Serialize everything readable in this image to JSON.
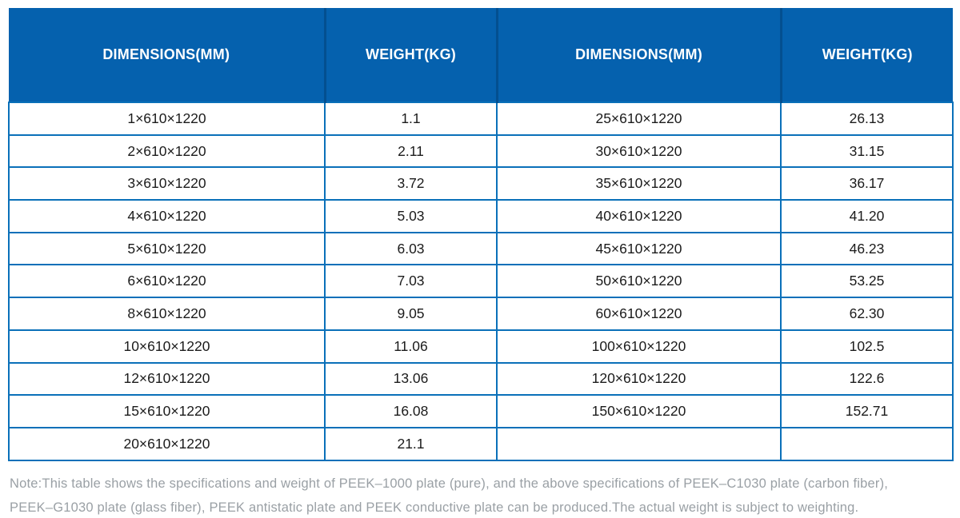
{
  "colors": {
    "header_bg": "#0561ae",
    "header_separator": "#034f90",
    "grid_border": "#0a70b9",
    "body_text": "#1b1b1b",
    "note_text": "#9aa0a5"
  },
  "table": {
    "headers": [
      "DIMENSIONS(MM)",
      "WEIGHT(KG)",
      "DIMENSIONS(MM)",
      "WEIGHT(KG)"
    ],
    "rows": [
      [
        "1×610×1220",
        "1.1",
        "25×610×1220",
        "26.13"
      ],
      [
        "2×610×1220",
        "2.11",
        "30×610×1220",
        "31.15"
      ],
      [
        "3×610×1220",
        "3.72",
        "35×610×1220",
        "36.17"
      ],
      [
        "4×610×1220",
        "5.03",
        "40×610×1220",
        "41.20"
      ],
      [
        "5×610×1220",
        "6.03",
        "45×610×1220",
        "46.23"
      ],
      [
        "6×610×1220",
        "7.03",
        "50×610×1220",
        "53.25"
      ],
      [
        "8×610×1220",
        "9.05",
        "60×610×1220",
        "62.30"
      ],
      [
        "10×610×1220",
        "11.06",
        "100×610×1220",
        "102.5"
      ],
      [
        "12×610×1220",
        "13.06",
        "120×610×1220",
        "122.6"
      ],
      [
        "15×610×1220",
        "16.08",
        "150×610×1220",
        "152.71"
      ],
      [
        "20×610×1220",
        "21.1",
        "",
        ""
      ]
    ]
  },
  "note": {
    "lines": [
      "Note:This table shows the specifications and weight of PEEK–1000 plate (pure), and the above specifications of PEEK–C1030 plate (carbon fiber),",
      "PEEK–G1030 plate (glass fiber), PEEK antistatic plate and PEEK conductive plate can be produced.The actual weight is subject to weighting."
    ]
  }
}
